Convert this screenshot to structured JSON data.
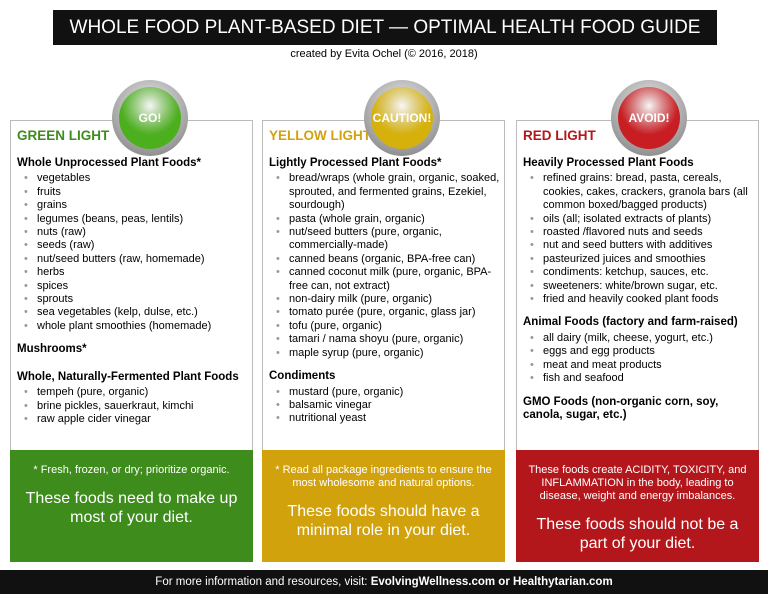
{
  "header": {
    "title": "WHOLE FOOD PLANT-BASED DIET — OPTIMAL HEALTH FOOD GUIDE",
    "credit": "created by Evita Ochel (© 2016, 2018)"
  },
  "columns": [
    {
      "badge": "GO!",
      "heading": "GREEN LIGHT",
      "color": "#3d8c1c",
      "badge_color": "#4caf1e",
      "sections": [
        {
          "title": "Whole Unprocessed Plant Foods*",
          "items": [
            "vegetables",
            "fruits",
            "grains",
            "legumes (beans, peas, lentils)",
            "nuts (raw)",
            "seeds (raw)",
            "nut/seed butters (raw, homemade)",
            "herbs",
            "spices",
            "sprouts",
            "sea vegetables (kelp, dulse, etc.)",
            "whole plant smoothies (homemade)"
          ]
        },
        {
          "title": "Mushrooms*"
        },
        {
          "title": "Whole, Naturally-Fermented Plant Foods",
          "items": [
            "tempeh (pure, organic)",
            "brine pickles, sauerkraut, kimchi",
            "raw apple cider vinegar"
          ]
        }
      ],
      "note": "* Fresh, frozen, or dry; prioritize organic.",
      "summary": "These foods need to make up most of your diet."
    },
    {
      "badge": "CAUTION!",
      "heading": "YELLOW LIGHT",
      "color": "#d2a20d",
      "badge_color": "#d6b10c",
      "sections": [
        {
          "title": "Lightly Processed Plant Foods*",
          "items": [
            "bread/wraps (whole grain, organic, soaked, sprouted, and fermented grains, Ezekiel, sourdough)",
            "pasta (whole grain, organic)",
            "nut/seed butters (pure, organic, commercially-made)",
            "canned beans (organic, BPA-free can)",
            "canned coconut milk (pure, organic, BPA-free can, not extract)",
            "non-dairy milk (pure, organic)",
            "tomato purée (pure, organic, glass jar)",
            "tofu (pure, organic)",
            "tamari / nama shoyu (pure, organic)",
            "maple syrup (pure, organic)"
          ]
        },
        {
          "title": "Condiments",
          "items": [
            "mustard (pure, organic)",
            "balsamic vinegar",
            "nutritional yeast"
          ]
        }
      ],
      "note": "* Read all package ingredients to ensure the most wholesome and natural options.",
      "summary": "These foods should have a minimal role in your diet."
    },
    {
      "badge": "AVOID!",
      "heading": "RED LIGHT",
      "color": "#b3171b",
      "badge_color": "#c81d22",
      "sections": [
        {
          "title": "Heavily Processed Plant Foods",
          "items": [
            "refined grains: bread, pasta, cereals, cookies, cakes, crackers, granola bars (all common boxed/bagged products)",
            "oils (all; isolated extracts of plants)",
            "roasted /flavored nuts and seeds",
            "nut and seed butters with additives",
            "pasteurized juices and smoothies",
            "condiments: ketchup, sauces, etc.",
            "sweeteners: white/brown sugar, etc.",
            "fried and heavily cooked plant foods"
          ]
        },
        {
          "title": "Animal Foods (factory and farm-raised)",
          "items": [
            "all dairy (milk, cheese, yogurt, etc.)",
            "eggs and egg products",
            "meat and meat products",
            "fish and seafood"
          ]
        },
        {
          "title": "GMO Foods (non-organic corn, soy, canola, sugar, etc.)"
        }
      ],
      "note": "These foods create ACIDITY, TOXICITY, and INFLAMMATION in the body, leading to disease, weight and energy imbalances.",
      "summary": "These foods should not be a part of your diet."
    }
  ],
  "footer": {
    "prefix": "For more information and resources, visit: ",
    "sites": "EvolvingWellness.com or Healthytarian.com"
  }
}
